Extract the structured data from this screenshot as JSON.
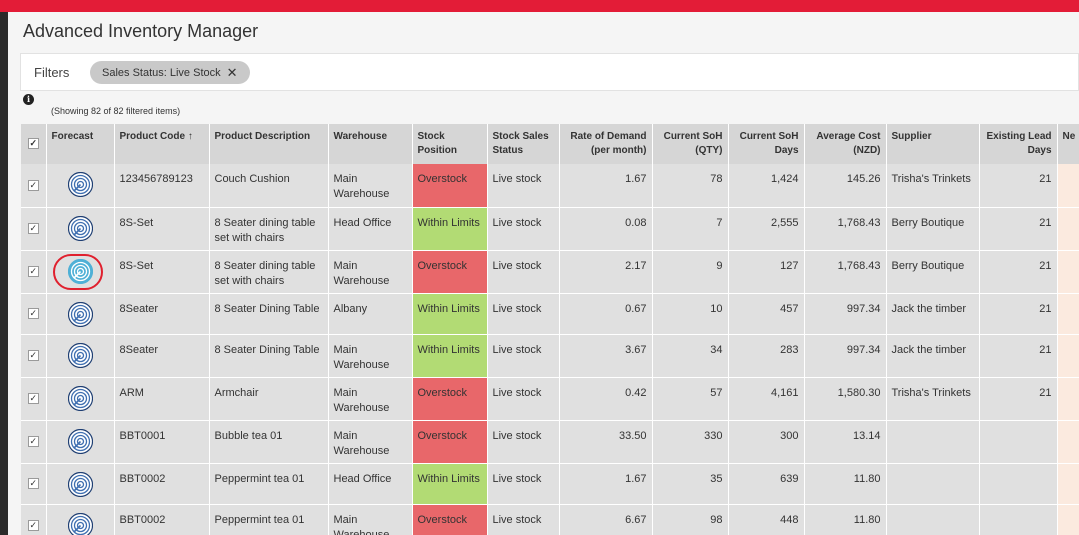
{
  "app": {
    "title": "Advanced Inventory Manager"
  },
  "filters": {
    "label": "Filters",
    "chips": [
      {
        "label": "Sales Status: Live Stock",
        "close": "✕"
      }
    ]
  },
  "summary": {
    "info_icon": "info-icon",
    "text": "(Showing 82 of 82 filtered items)"
  },
  "colors": {
    "topbar": "#e31c37",
    "overstock": "#e8676a",
    "within_limits": "#b2db74",
    "highlight_ring": "#e0202e",
    "forecast_icon_active": "#4fb0d6",
    "forecast_icon": "#3f6fb0"
  },
  "table": {
    "columns": [
      {
        "label": "✓"
      },
      {
        "label": "Forecast"
      },
      {
        "label": "Product Code ↑"
      },
      {
        "label": "Product Description"
      },
      {
        "label": "Warehouse"
      },
      {
        "label": "Stock Position"
      },
      {
        "label": "Stock Sales Status"
      },
      {
        "label": "Rate of Demand (per month)"
      },
      {
        "label": "Current SoH (QTY)"
      },
      {
        "label": "Current SoH Days"
      },
      {
        "label": "Average Cost (NZD)"
      },
      {
        "label": "Supplier"
      },
      {
        "label": "Existing Lead Days"
      },
      {
        "label": "Ne"
      }
    ],
    "rows": [
      {
        "checked": true,
        "forecast_icon": "forecast-radar-icon",
        "forecast_active": false,
        "code": "123456789123",
        "desc": "Couch Cushion",
        "warehouse": "Main Warehouse",
        "position": "Overstock",
        "status": "Live stock",
        "rate": "1.67",
        "soh_qty": "78",
        "soh_days": "1,424",
        "avg_cost": "145.26",
        "supplier": "Trisha's Trinkets",
        "lead_days": "21"
      },
      {
        "checked": true,
        "forecast_icon": "forecast-radar-icon",
        "forecast_active": false,
        "code": "8S-Set",
        "desc": "8 Seater dining table set with chairs",
        "warehouse": "Head Office",
        "position": "Within Limits",
        "status": "Live stock",
        "rate": "0.08",
        "soh_qty": "7",
        "soh_days": "2,555",
        "avg_cost": "1,768.43",
        "supplier": "Berry Boutique",
        "lead_days": "21"
      },
      {
        "checked": true,
        "forecast_icon": "forecast-radar-icon",
        "forecast_active": true,
        "code": "8S-Set",
        "desc": "8 Seater dining table set with chairs",
        "warehouse": "Main Warehouse",
        "position": "Overstock",
        "status": "Live stock",
        "rate": "2.17",
        "soh_qty": "9",
        "soh_days": "127",
        "avg_cost": "1,768.43",
        "supplier": "Berry Boutique",
        "lead_days": "21"
      },
      {
        "checked": true,
        "forecast_icon": "forecast-radar-icon",
        "forecast_active": false,
        "code": "8Seater",
        "desc": "8 Seater Dining Table",
        "warehouse": "Albany",
        "position": "Within Limits",
        "status": "Live stock",
        "rate": "0.67",
        "soh_qty": "10",
        "soh_days": "457",
        "avg_cost": "997.34",
        "supplier": "Jack the timber",
        "lead_days": "21"
      },
      {
        "checked": true,
        "forecast_icon": "forecast-radar-icon",
        "forecast_active": false,
        "code": "8Seater",
        "desc": "8 Seater Dining Table",
        "warehouse": "Main Warehouse",
        "position": "Within Limits",
        "status": "Live stock",
        "rate": "3.67",
        "soh_qty": "34",
        "soh_days": "283",
        "avg_cost": "997.34",
        "supplier": "Jack the timber",
        "lead_days": "21"
      },
      {
        "checked": true,
        "forecast_icon": "forecast-radar-icon",
        "forecast_active": false,
        "code": "ARM",
        "desc": "Armchair",
        "warehouse": "Main Warehouse",
        "position": "Overstock",
        "status": "Live stock",
        "rate": "0.42",
        "soh_qty": "57",
        "soh_days": "4,161",
        "avg_cost": "1,580.30",
        "supplier": "Trisha's Trinkets",
        "lead_days": "21"
      },
      {
        "checked": true,
        "forecast_icon": "forecast-radar-icon",
        "forecast_active": false,
        "code": "BBT0001",
        "desc": "Bubble tea 01",
        "warehouse": "Main Warehouse",
        "position": "Overstock",
        "status": "Live stock",
        "rate": "33.50",
        "soh_qty": "330",
        "soh_days": "300",
        "avg_cost": "13.14",
        "supplier": "",
        "lead_days": ""
      },
      {
        "checked": true,
        "forecast_icon": "forecast-radar-icon",
        "forecast_active": false,
        "code": "BBT0002",
        "desc": "Peppermint tea 01",
        "warehouse": "Head Office",
        "position": "Within Limits",
        "status": "Live stock",
        "rate": "1.67",
        "soh_qty": "35",
        "soh_days": "639",
        "avg_cost": "11.80",
        "supplier": "",
        "lead_days": ""
      },
      {
        "checked": true,
        "forecast_icon": "forecast-radar-icon",
        "forecast_active": false,
        "code": "BBT0002",
        "desc": "Peppermint tea 01",
        "warehouse": "Main Warehouse",
        "position": "Overstock",
        "status": "Live stock",
        "rate": "6.67",
        "soh_qty": "98",
        "soh_days": "448",
        "avg_cost": "11.80",
        "supplier": "",
        "lead_days": ""
      }
    ]
  }
}
